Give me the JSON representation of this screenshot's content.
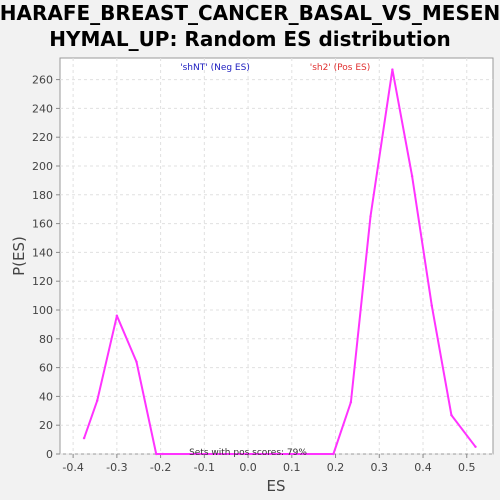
{
  "chart_data": {
    "type": "line",
    "title_line1": "CHARAFE_BREAST_CANCER_BASAL_VS_MESENC",
    "title_line2": "HYMAL_UP: Random ES distribution",
    "xlabel": "ES",
    "ylabel": "P(ES)",
    "xlim": [
      -0.43,
      0.56
    ],
    "ylim": [
      0,
      275
    ],
    "x_ticks": [
      -0.4,
      -0.3,
      -0.2,
      -0.1,
      0.0,
      0.1,
      0.2,
      0.3,
      0.4,
      0.5
    ],
    "x_tick_labels": [
      "-0.4",
      "-0.3",
      "-0.2",
      "-0.1",
      "0.0",
      "0.1",
      "0.2",
      "0.3",
      "0.4",
      "0.5"
    ],
    "y_ticks": [
      0,
      20,
      40,
      60,
      80,
      100,
      120,
      140,
      160,
      180,
      200,
      220,
      240,
      260
    ],
    "grid": true,
    "series": [
      {
        "color": "#ff33ff",
        "x": [
          -0.375,
          -0.345,
          -0.3,
          -0.255,
          -0.21,
          -0.195,
          0.0,
          0.195,
          0.235,
          0.28,
          0.33,
          0.375,
          0.42,
          0.465,
          0.52
        ],
        "y": [
          11,
          37,
          96,
          64,
          0,
          0,
          0,
          0,
          36,
          165,
          267,
          193,
          103,
          27,
          5
        ]
      }
    ],
    "annotations": {
      "neg_label": "'shNT' (Neg ES)",
      "neg_color": "#2020c0",
      "pos_label": "'sh2' (Pos ES)",
      "pos_color": "#e03030",
      "footer": "Sets with pos scores: 79%",
      "footer_color": "#333333"
    }
  }
}
